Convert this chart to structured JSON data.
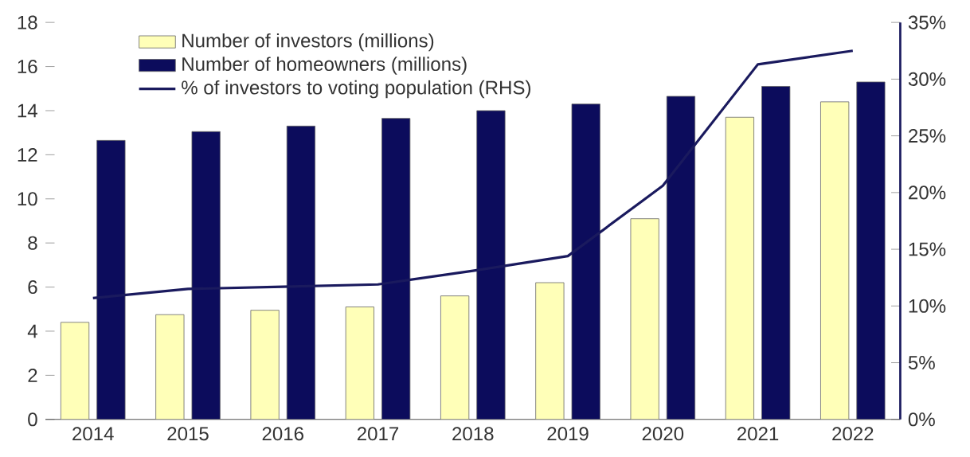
{
  "chart_data": {
    "type": "bar",
    "categories": [
      "2014",
      "2015",
      "2016",
      "2017",
      "2018",
      "2019",
      "2020",
      "2021",
      "2022"
    ],
    "series": [
      {
        "name": "Number of investors (millions)",
        "color": "#ffffb8",
        "values": [
          4.4,
          4.75,
          4.95,
          5.1,
          5.6,
          6.2,
          9.1,
          13.7,
          14.4
        ]
      },
      {
        "name": "Number of homeowners (millions)",
        "color": "#0c0c5c",
        "values": [
          12.65,
          13.05,
          13.3,
          13.65,
          14.0,
          14.3,
          14.65,
          15.1,
          15.3
        ]
      },
      {
        "name": "% of investors to voting population (RHS)",
        "type": "line",
        "axis": "y2",
        "color": "#1a1a5e",
        "values": [
          10.7,
          11.5,
          11.7,
          11.9,
          13.1,
          14.4,
          20.6,
          31.3,
          32.5
        ]
      }
    ],
    "ylim": [
      0,
      18
    ],
    "yticks": [
      0,
      2,
      4,
      6,
      8,
      10,
      12,
      14,
      16,
      18
    ],
    "y2lim": [
      0,
      35
    ],
    "y2ticks": [
      {
        "value": 0,
        "label": "0%"
      },
      {
        "value": 5,
        "label": "5%"
      },
      {
        "value": 10,
        "label": "10%"
      },
      {
        "value": 15,
        "label": "15%"
      },
      {
        "value": 20,
        "label": "20%"
      },
      {
        "value": 25,
        "label": "25%"
      },
      {
        "value": 30,
        "label": "30%"
      },
      {
        "value": 35,
        "label": "35%"
      }
    ],
    "grid": false,
    "legend": "top left"
  }
}
